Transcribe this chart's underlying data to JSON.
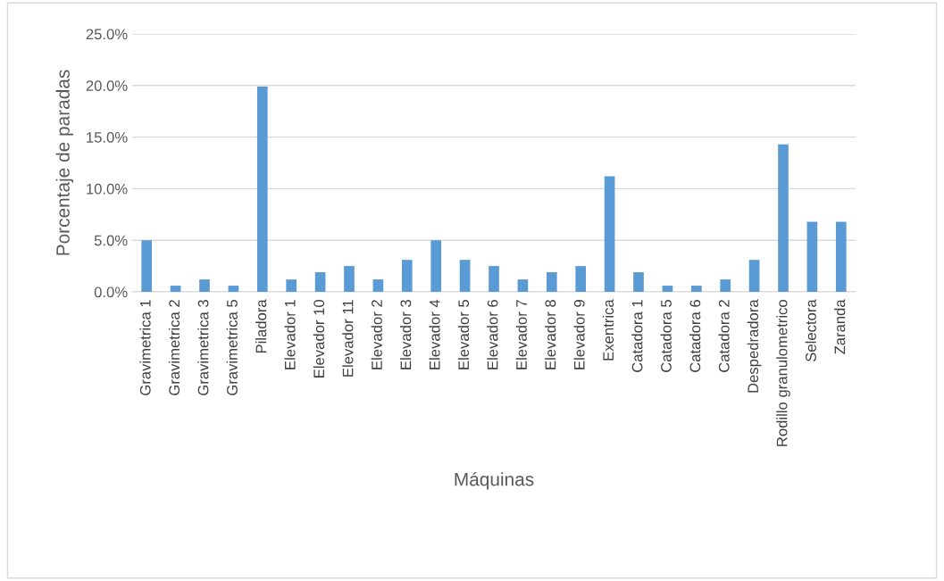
{
  "chart_data": {
    "type": "bar",
    "xlabel": "Máquinas",
    "ylabel": "Porcentaje de paradas",
    "categories": [
      "Gravimetrica 1",
      "Gravimetrica 2",
      "Gravimetrica 3",
      "Gravimetrica 5",
      "Piladora",
      "Elevador 1",
      "Elevador 10",
      "Elevador 11",
      "Elevador 2",
      "Elevador 3",
      "Elevador 4",
      "Elevador 5",
      "Elevador 6",
      "Elevador 7",
      "Elevador 8",
      "Elevador 9",
      "Exentrica",
      "Catadora 1",
      "Catadora 5",
      "Catadora 6",
      "Catadora 2",
      "Despedradora",
      "Rodillo granulometrico",
      "Selectora",
      "Zaranda"
    ],
    "values": [
      5.0,
      0.6,
      1.2,
      0.6,
      19.9,
      1.2,
      1.9,
      2.5,
      1.2,
      3.1,
      5.0,
      3.1,
      2.5,
      1.2,
      1.9,
      2.5,
      11.2,
      1.9,
      0.6,
      0.6,
      1.2,
      3.1,
      14.3,
      6.8,
      6.8
    ],
    "color": "#5b9bd5",
    "ylim": [
      0,
      25
    ],
    "yticks": [
      {
        "value": 0,
        "label": "0.0%"
      },
      {
        "value": 5,
        "label": "5.0%"
      },
      {
        "value": 10,
        "label": "10.0%"
      },
      {
        "value": 15,
        "label": "15.0%"
      },
      {
        "value": 20,
        "label": "20.0%"
      },
      {
        "value": 25,
        "label": "25.0%"
      }
    ],
    "grid": "y"
  }
}
